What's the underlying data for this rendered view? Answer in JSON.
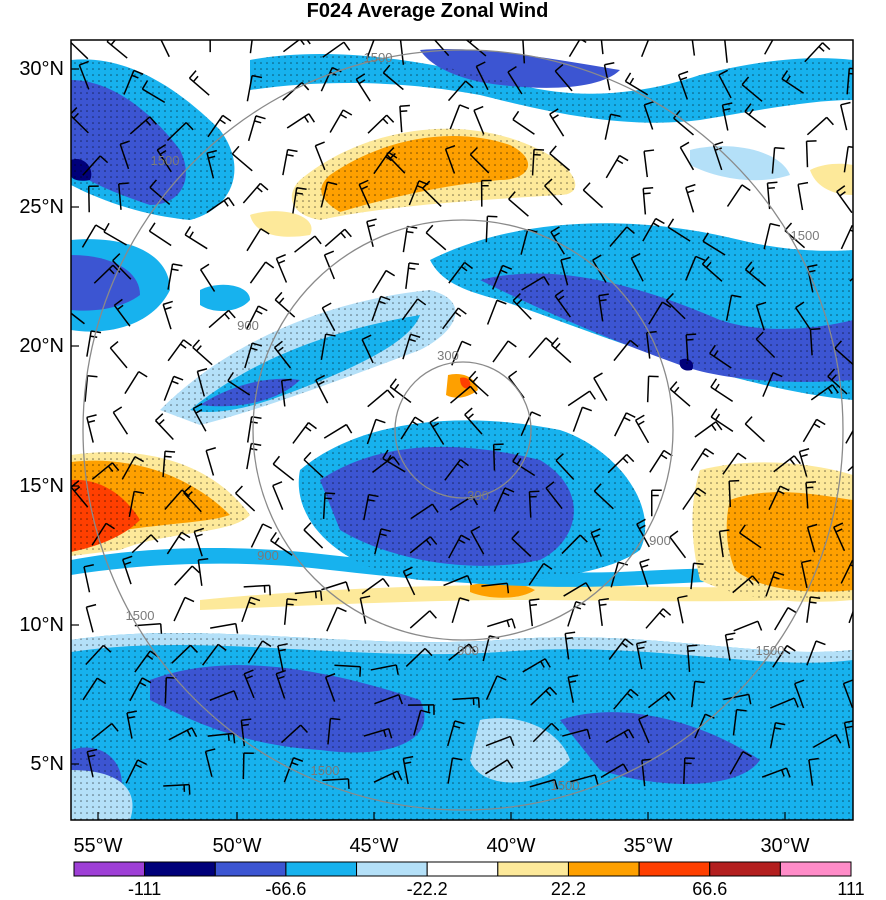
{
  "title": "F024 Average Zonal Wind",
  "lat_labels": [
    "30°N",
    "25°N",
    "20°N",
    "15°N",
    "10°N",
    "5°N"
  ],
  "lon_labels": [
    "55°W",
    "50°W",
    "45°W",
    "40°W",
    "35°W",
    "30°W"
  ],
  "range_ring_labels": [
    "300",
    "900",
    "1500"
  ],
  "colorbar": {
    "colors": [
      "#9e3fd6",
      "#00007a",
      "#3c55d2",
      "#17b2ee",
      "#b4e0f8",
      "#ffffff",
      "#fde99a",
      "#fea000",
      "#ff3f00",
      "#b31f1f",
      "#ff8cc8"
    ],
    "labels": [
      "-111",
      "-66.6",
      "-22.2",
      "22.2",
      "66.6",
      "111"
    ]
  }
}
